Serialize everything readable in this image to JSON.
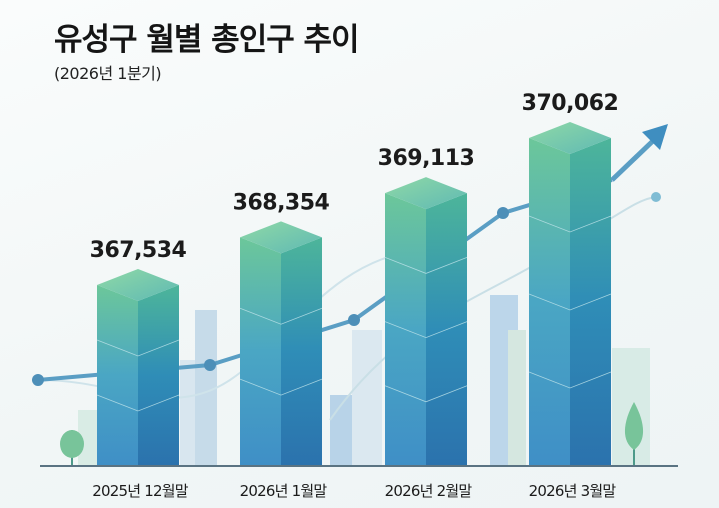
{
  "chart_data": {
    "type": "bar",
    "title": "유성구 월별 총인구 추이",
    "subtitle": "(2026년 1분기)",
    "categories": [
      "2025년 12월말",
      "2026년 1월말",
      "2026년 2월말",
      "2026년 3월말"
    ],
    "values": [
      367534,
      368354,
      369113,
      370062
    ],
    "value_labels": [
      "367,534",
      "368,354",
      "369,113",
      "370,062"
    ],
    "xlabel": "",
    "ylabel": "",
    "grid": false,
    "legend": "none",
    "trend_arrow": "up",
    "colors": {
      "bar_top": "#6cc79a",
      "bar_left": "#4aa3c9",
      "bar_right": "#2f7fb5",
      "trend_line": "#5a9ec4",
      "background": "#f4f8f8"
    }
  }
}
